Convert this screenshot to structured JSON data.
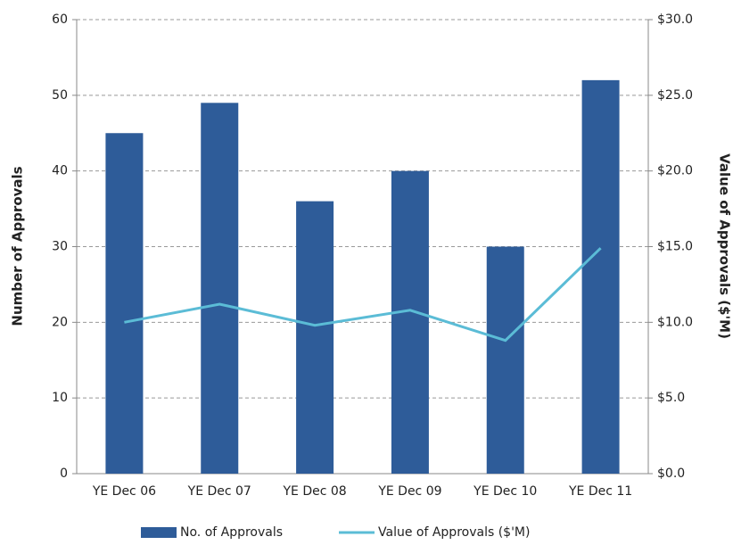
{
  "chart_data": {
    "type": "bar",
    "categories": [
      "YE Dec 06",
      "YE Dec 07",
      "YE Dec 08",
      "YE Dec 09",
      "YE Dec 10",
      "YE Dec 11"
    ],
    "series": [
      {
        "name": "No. of Approvals",
        "type": "bar",
        "color": "#2e5c99",
        "values": [
          45,
          49,
          36,
          40,
          30,
          52
        ]
      },
      {
        "name": "Value of Approvals ($'M)",
        "type": "line",
        "axis": "y2",
        "color": "#5bbcd6",
        "values": [
          10.0,
          11.2,
          9.8,
          10.8,
          8.8,
          14.9
        ]
      }
    ],
    "ylabel": "Number of Approvals",
    "y2label": "Value of Approvals ($'M)",
    "ylim": [
      0,
      60
    ],
    "yticks": [
      0,
      10,
      20,
      30,
      40,
      50,
      60
    ],
    "y2lim": [
      0,
      30
    ],
    "y2ticks": [
      {
        "value": 0,
        "label": "$0.0"
      },
      {
        "value": 5,
        "label": "$5.0"
      },
      {
        "value": 10,
        "label": "$10.0"
      },
      {
        "value": 15,
        "label": "$15.0"
      },
      {
        "value": 20,
        "label": "$20.0"
      },
      {
        "value": 25,
        "label": "$25.0"
      },
      {
        "value": 30,
        "label": "$30.0"
      }
    ],
    "grid": true,
    "legend": "bottom"
  }
}
